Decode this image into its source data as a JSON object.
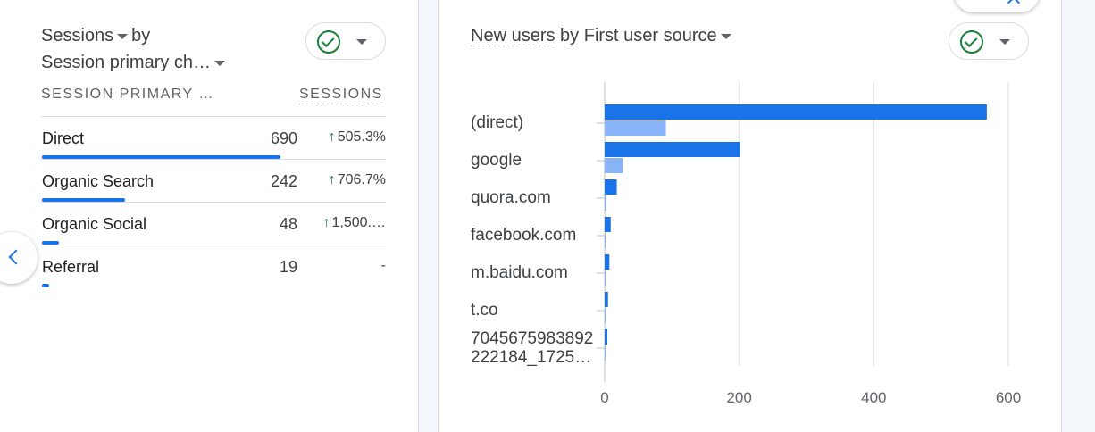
{
  "left_card": {
    "title_metric": "Sessions",
    "title_by": "by",
    "title_dimension": "Session primary ch…",
    "col_dimension": "SESSION PRIMARY …",
    "col_metric": "SESSIONS",
    "rows": [
      {
        "name": "Direct",
        "value": "690",
        "change": "505.3%",
        "up": true,
        "share": 1.0
      },
      {
        "name": "Organic Search",
        "value": "242",
        "change": "706.7%",
        "up": true,
        "share": 0.35
      },
      {
        "name": "Organic Social",
        "value": "48",
        "change": "1,500.…",
        "up": true,
        "share": 0.07
      },
      {
        "name": "Referral",
        "value": "19",
        "change": "-",
        "up": false,
        "share": 0.03
      }
    ]
  },
  "right_card": {
    "title_metric": "New users",
    "title_by": "by",
    "title_dimension": "First user source"
  },
  "chart_data": {
    "type": "bar",
    "orientation": "horizontal",
    "title": "New users by First user source",
    "categories": [
      "(direct)",
      "google",
      "quora.com",
      "facebook.com",
      "m.baidu.com",
      "t.co",
      "7045675983892 222184_1725…"
    ],
    "category_lines": [
      [
        "(direct)"
      ],
      [
        "google"
      ],
      [
        "quora.com"
      ],
      [
        "facebook.com"
      ],
      [
        "m.baidu.com"
      ],
      [
        "t.co"
      ],
      [
        "7045675983892",
        "222184_1725…"
      ]
    ],
    "series": [
      {
        "values": [
          568,
          201,
          18,
          9,
          7,
          5,
          4
        ],
        "color": "#1a73e8"
      },
      {
        "values": [
          91,
          27,
          1,
          0,
          0,
          0,
          0
        ],
        "color": "#8ab4f8"
      }
    ],
    "xticks": [
      0,
      200,
      400,
      600
    ],
    "xlim": [
      0,
      600
    ],
    "grid": true
  },
  "colors": {
    "accent": "#1a73e8",
    "accent_light": "#8ab4f8",
    "positive": "#188038"
  }
}
